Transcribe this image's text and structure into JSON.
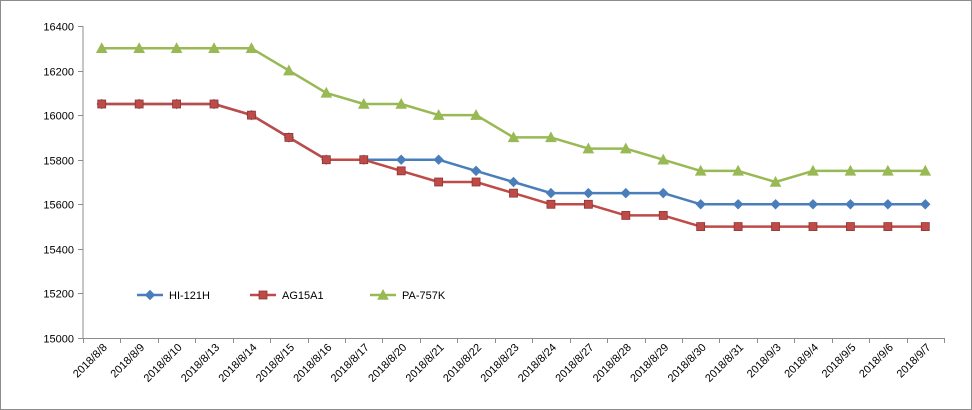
{
  "chart_data": {
    "type": "line",
    "title": "",
    "xlabel": "",
    "ylabel": "",
    "ylim": [
      15000,
      16400
    ],
    "ytick_step": 200,
    "grid": false,
    "legend_position": "inside-lower-left",
    "categories": [
      "2018/8/8",
      "2018/8/9",
      "2018/8/10",
      "2018/8/13",
      "2018/8/14",
      "2018/8/15",
      "2018/8/16",
      "2018/8/17",
      "2018/8/20",
      "2018/8/21",
      "2018/8/22",
      "2018/8/23",
      "2018/8/24",
      "2018/8/27",
      "2018/8/28",
      "2018/8/29",
      "2018/8/30",
      "2018/8/31",
      "2018/9/3",
      "2018/9/4",
      "2018/9/5",
      "2018/9/6",
      "2018/9/7"
    ],
    "series": [
      {
        "name": "HI-121H",
        "color": "#4a7ebb",
        "marker": "diamond",
        "values": [
          16050,
          16050,
          16050,
          16050,
          16000,
          15900,
          15800,
          15800,
          15800,
          15800,
          15750,
          15700,
          15650,
          15650,
          15650,
          15650,
          15600,
          15600,
          15600,
          15600,
          15600,
          15600,
          15600
        ]
      },
      {
        "name": "AG15A1",
        "color": "#be4b48",
        "marker": "square",
        "values": [
          16050,
          16050,
          16050,
          16050,
          16000,
          15900,
          15800,
          15800,
          15750,
          15700,
          15700,
          15650,
          15600,
          15600,
          15550,
          15550,
          15500,
          15500,
          15500,
          15500,
          15500,
          15500,
          15500
        ]
      },
      {
        "name": "PA-757K",
        "color": "#98b954",
        "marker": "triangle",
        "values": [
          16300,
          16300,
          16300,
          16300,
          16300,
          16200,
          16100,
          16050,
          16050,
          16000,
          16000,
          15900,
          15900,
          15850,
          15850,
          15800,
          15750,
          15750,
          15700,
          15750,
          15750,
          15750,
          15750
        ]
      }
    ]
  }
}
